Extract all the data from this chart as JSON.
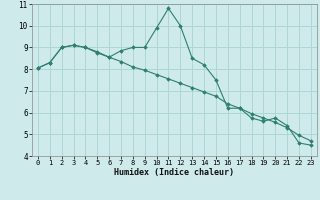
{
  "xlabel": "Humidex (Indice chaleur)",
  "bg_color": "#ceeaea",
  "grid_color": "#aed6d6",
  "line_color": "#2e7f70",
  "xlim": [
    -0.5,
    23.5
  ],
  "ylim": [
    4,
    11
  ],
  "xticks": [
    0,
    1,
    2,
    3,
    4,
    5,
    6,
    7,
    8,
    9,
    10,
    11,
    12,
    13,
    14,
    15,
    16,
    17,
    18,
    19,
    20,
    21,
    22,
    23
  ],
  "yticks": [
    4,
    5,
    6,
    7,
    8,
    9,
    10,
    11
  ],
  "line1_x": [
    0,
    1,
    2,
    3,
    4,
    5,
    6,
    7,
    8,
    9,
    10,
    11,
    12,
    13,
    14,
    15,
    16,
    17,
    18,
    19,
    20,
    21,
    22,
    23
  ],
  "line1_y": [
    8.05,
    8.3,
    9.0,
    9.1,
    9.0,
    8.8,
    8.55,
    8.85,
    9.0,
    9.0,
    9.9,
    10.8,
    10.0,
    8.5,
    8.2,
    7.5,
    6.2,
    6.2,
    5.75,
    5.6,
    5.75,
    5.4,
    4.6,
    4.5
  ],
  "line2_x": [
    0,
    1,
    2,
    3,
    4,
    5,
    6,
    7,
    8,
    9,
    10,
    11,
    12,
    13,
    14,
    15,
    16,
    17,
    18,
    19,
    20,
    21,
    22,
    23
  ],
  "line2_y": [
    8.05,
    8.3,
    9.0,
    9.1,
    9.0,
    8.75,
    8.55,
    8.35,
    8.1,
    7.95,
    7.75,
    7.55,
    7.35,
    7.15,
    6.95,
    6.75,
    6.4,
    6.2,
    5.95,
    5.75,
    5.55,
    5.3,
    4.95,
    4.7
  ]
}
